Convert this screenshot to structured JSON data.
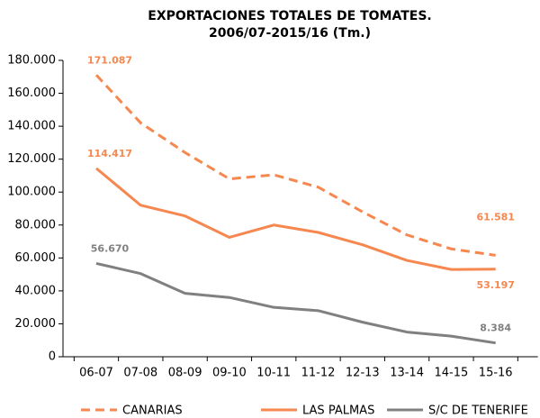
{
  "chart_data": {
    "type": "line",
    "title": [
      "EXPORTACIONES TOTALES DE TOMATES.",
      "2006/07-2015/16 (Tm.)"
    ],
    "categories": [
      "06-07",
      "07-08",
      "08-09",
      "09-10",
      "10-11",
      "11-12",
      "12-13",
      "13-14",
      "14-15",
      "15-16"
    ],
    "series": [
      {
        "name": "CANARIAS",
        "color": "#f5874f",
        "dash": true,
        "values": [
          171087,
          142000,
          124000,
          108000,
          110500,
          103000,
          88000,
          74000,
          65500,
          61581
        ],
        "value_labels": [
          "171.087",
          null,
          null,
          null,
          null,
          null,
          null,
          null,
          null,
          "61.581"
        ]
      },
      {
        "name": "LAS PALMAS",
        "color": "#f5874f",
        "dash": false,
        "values": [
          114417,
          92000,
          85500,
          72500,
          80000,
          75500,
          68000,
          58500,
          53000,
          53197
        ],
        "value_labels": [
          "114.417",
          null,
          null,
          null,
          null,
          null,
          null,
          null,
          null,
          "53.197"
        ]
      },
      {
        "name": "S/C DE TENERIFE",
        "color": "#808080",
        "dash": false,
        "values": [
          56670,
          50500,
          38500,
          36000,
          30000,
          28000,
          21000,
          15000,
          12500,
          8384
        ],
        "value_labels": [
          "56.670",
          null,
          null,
          null,
          null,
          null,
          null,
          null,
          null,
          "8.384"
        ]
      }
    ],
    "ylim": [
      0,
      180000
    ],
    "yticks": [
      0,
      {
        "value": 20000,
        "label": "20.000"
      },
      {
        "value": 40000,
        "label": "40.000"
      },
      {
        "value": 60000,
        "label": "60.000"
      },
      {
        "value": 80000,
        "label": "80.000"
      },
      {
        "value": 100000,
        "label": "100.000"
      },
      {
        "value": 120000,
        "label": "120.000"
      },
      {
        "value": 140000,
        "label": "140.000"
      },
      {
        "value": 160000,
        "label": "160.000"
      },
      {
        "value": 180000,
        "label": "180.000"
      }
    ],
    "grid": false,
    "legend": "bottom"
  }
}
